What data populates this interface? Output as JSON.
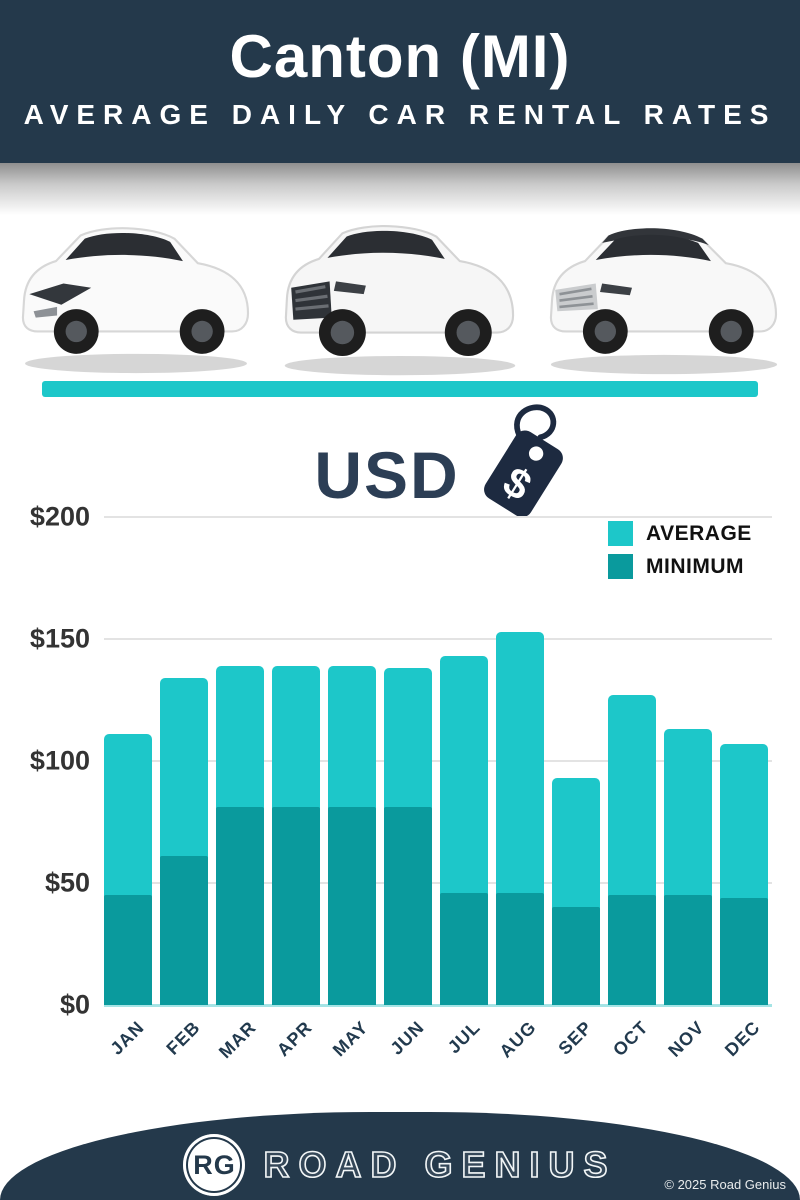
{
  "header": {
    "title": "Canton (MI)",
    "subtitle": "AVERAGE DAILY CAR RENTAL RATES"
  },
  "currency": {
    "label": "USD",
    "tag_symbol": "$"
  },
  "legend": [
    {
      "label": "AVERAGE",
      "color": "#1dc7c9"
    },
    {
      "label": "MINIMUM",
      "color": "#0a9a9d"
    }
  ],
  "chart_data": {
    "type": "bar",
    "title": "Canton (MI) Average Daily Car Rental Rates (USD)",
    "categories": [
      "JAN",
      "FEB",
      "MAR",
      "APR",
      "MAY",
      "JUN",
      "JUL",
      "AUG",
      "SEP",
      "OCT",
      "NOV",
      "DEC"
    ],
    "series": [
      {
        "name": "AVERAGE",
        "color": "#1dc7c9",
        "values": [
          111,
          134,
          139,
          139,
          139,
          138,
          143,
          153,
          93,
          127,
          113,
          107
        ]
      },
      {
        "name": "MINIMUM",
        "color": "#0a9a9d",
        "values": [
          45,
          61,
          81,
          81,
          81,
          81,
          46,
          46,
          40,
          45,
          45,
          44
        ]
      }
    ],
    "bar_style": "overlaid",
    "xlabel": "",
    "ylabel": "",
    "ylim": [
      0,
      200
    ],
    "yticks": [
      {
        "label": "$200",
        "value": 200
      },
      {
        "label": "$150",
        "value": 150
      },
      {
        "label": "$100",
        "value": 100
      },
      {
        "label": "$50",
        "value": 50
      },
      {
        "label": "$0",
        "value": 0
      }
    ],
    "grid": true,
    "legend_position": "top-right"
  },
  "footer": {
    "logo_initials": "RG",
    "brand": "ROAD GENIUS",
    "copyright": "© 2025 Road Genius"
  },
  "colors": {
    "navy": "#24394b",
    "accent": "#1dc7c9",
    "accent_dark": "#0a9a9d",
    "tag_navy": "#1d2a40"
  }
}
